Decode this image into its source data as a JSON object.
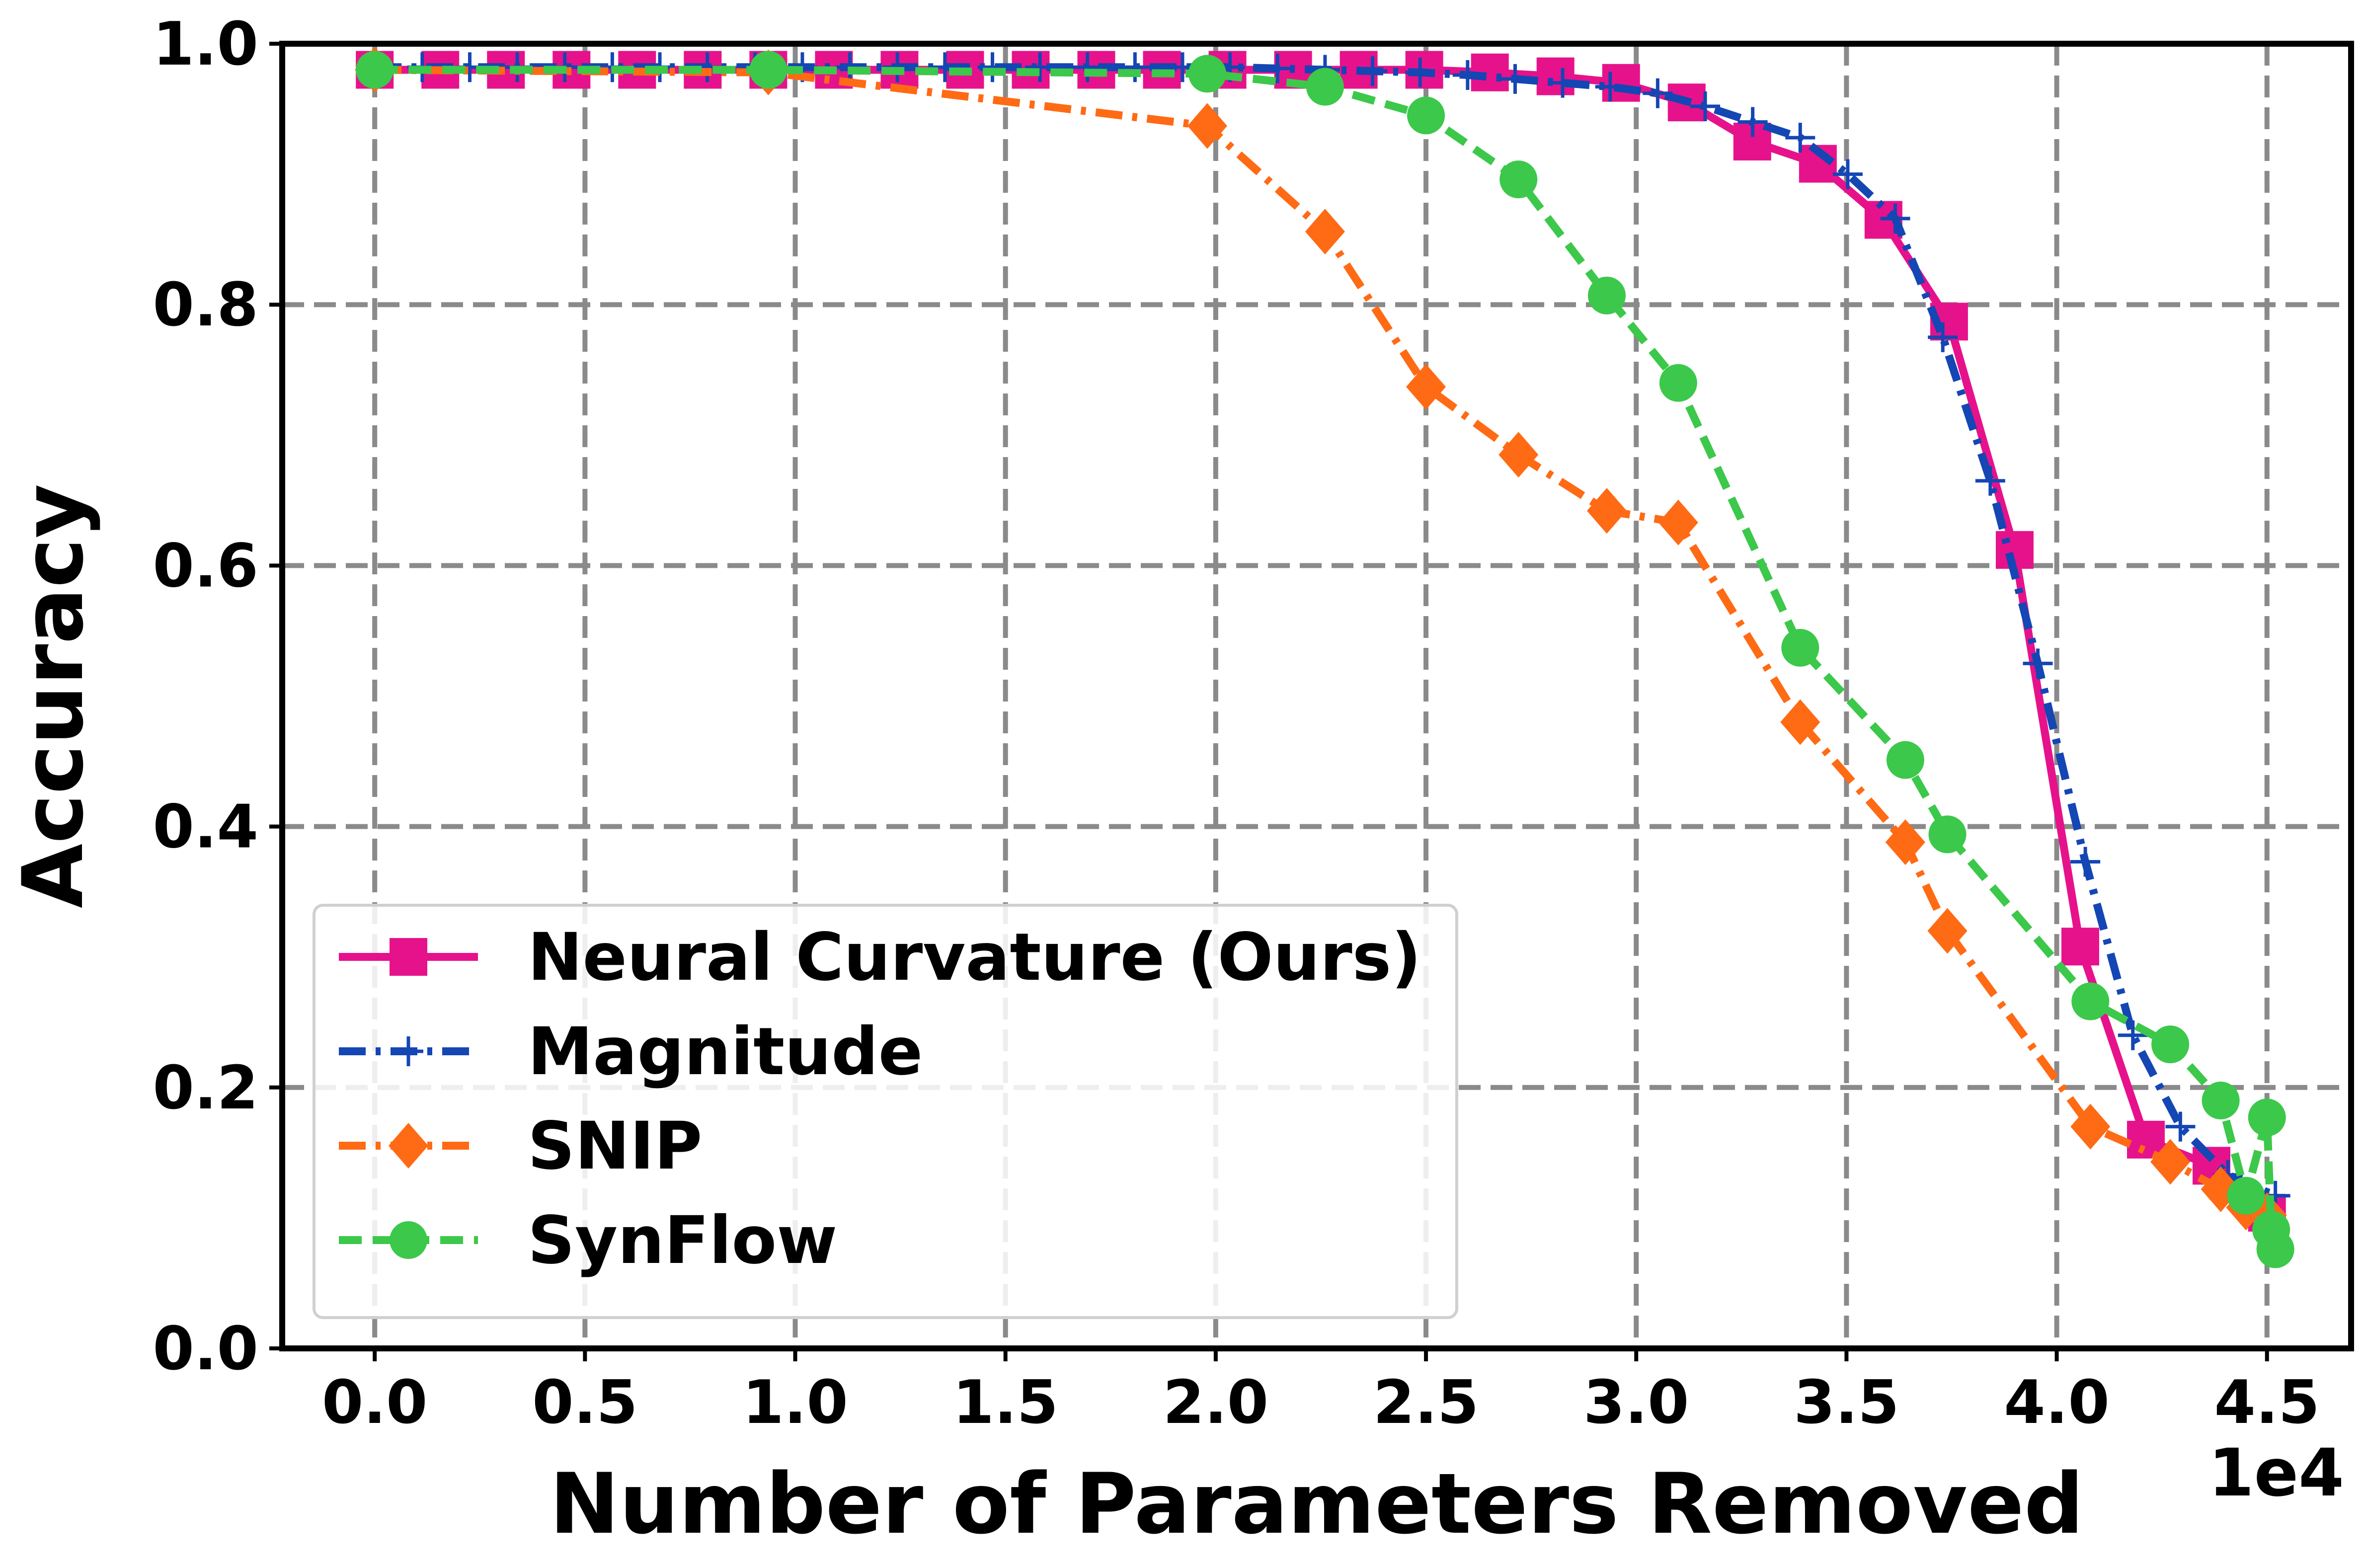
{
  "chart_data": {
    "type": "line",
    "xlabel": "Number of Parameters Removed",
    "ylabel": "Accuracy",
    "x_offset_label": "1e4",
    "xlim": [
      -0.22,
      4.7
    ],
    "ylim": [
      0.0,
      1.0
    ],
    "x_ticks": [
      "0.0",
      "0.5",
      "1.0",
      "1.5",
      "2.0",
      "2.5",
      "3.0",
      "3.5",
      "4.0",
      "4.5"
    ],
    "y_ticks": [
      "0.0",
      "0.2",
      "0.4",
      "0.6",
      "0.8",
      "1.0"
    ],
    "grid": true,
    "legend_position": "lower-left",
    "series": [
      {
        "name": "Neural Curvature (Ours)",
        "color": "#e6128c",
        "marker": "square",
        "linestyle": "solid",
        "x": [
          0.0,
          0.156,
          0.312,
          0.468,
          0.624,
          0.78,
          0.936,
          1.092,
          1.248,
          1.404,
          1.56,
          1.716,
          1.872,
          2.028,
          2.184,
          2.34,
          2.496,
          2.652,
          2.808,
          2.964,
          3.12,
          3.276,
          3.432,
          3.588,
          3.744,
          3.9,
          4.056,
          4.212,
          4.368,
          4.5
        ],
        "y": [
          0.98,
          0.98,
          0.98,
          0.98,
          0.98,
          0.98,
          0.98,
          0.98,
          0.98,
          0.98,
          0.98,
          0.98,
          0.98,
          0.98,
          0.98,
          0.98,
          0.98,
          0.978,
          0.975,
          0.97,
          0.955,
          0.925,
          0.908,
          0.865,
          0.787,
          0.612,
          0.308,
          0.16,
          0.14,
          0.104
        ]
      },
      {
        "name": "Magnitude",
        "color": "#1446b4",
        "marker": "plus",
        "linestyle": "dashdot",
        "x": [
          0.0,
          0.113,
          0.226,
          0.339,
          0.452,
          0.565,
          0.678,
          0.791,
          0.904,
          1.017,
          1.13,
          1.243,
          1.356,
          1.469,
          1.582,
          1.695,
          1.808,
          1.921,
          2.034,
          2.147,
          2.26,
          2.373,
          2.486,
          2.599,
          2.712,
          2.825,
          2.938,
          3.051,
          3.164,
          3.277,
          3.39,
          3.503,
          3.616,
          3.729,
          3.842,
          3.955,
          4.068,
          4.181,
          4.294,
          4.407,
          4.52
        ],
        "y": [
          0.982,
          0.982,
          0.982,
          0.982,
          0.982,
          0.982,
          0.982,
          0.982,
          0.982,
          0.982,
          0.982,
          0.982,
          0.982,
          0.982,
          0.982,
          0.982,
          0.982,
          0.982,
          0.982,
          0.981,
          0.98,
          0.979,
          0.978,
          0.976,
          0.973,
          0.97,
          0.967,
          0.962,
          0.952,
          0.94,
          0.928,
          0.9,
          0.866,
          0.775,
          0.665,
          0.525,
          0.373,
          0.24,
          0.17,
          0.133,
          0.117
        ]
      },
      {
        "name": "SNIP",
        "color": "#ff6a14",
        "marker": "diamond",
        "linestyle": "dashdot",
        "x": [
          0.0,
          0.936,
          1.98,
          2.26,
          2.5,
          2.72,
          2.93,
          3.1,
          3.39,
          3.64,
          3.74,
          4.08,
          4.27,
          4.39,
          4.45,
          4.5
        ],
        "y": [
          0.98,
          0.978,
          0.937,
          0.856,
          0.737,
          0.685,
          0.642,
          0.633,
          0.48,
          0.388,
          0.32,
          0.17,
          0.143,
          0.122,
          0.108,
          0.102
        ]
      },
      {
        "name": "SynFlow",
        "color": "#3cc84a",
        "marker": "circle",
        "linestyle": "dashed",
        "x": [
          0.0,
          0.936,
          1.98,
          2.26,
          2.5,
          2.72,
          2.93,
          3.1,
          3.39,
          3.64,
          3.74,
          4.08,
          4.27,
          4.39,
          4.45,
          4.5,
          4.51,
          4.52
        ],
        "y": [
          0.98,
          0.98,
          0.977,
          0.967,
          0.945,
          0.896,
          0.807,
          0.74,
          0.537,
          0.451,
          0.394,
          0.266,
          0.233,
          0.19,
          0.117,
          0.177,
          0.091,
          0.076
        ]
      }
    ]
  }
}
